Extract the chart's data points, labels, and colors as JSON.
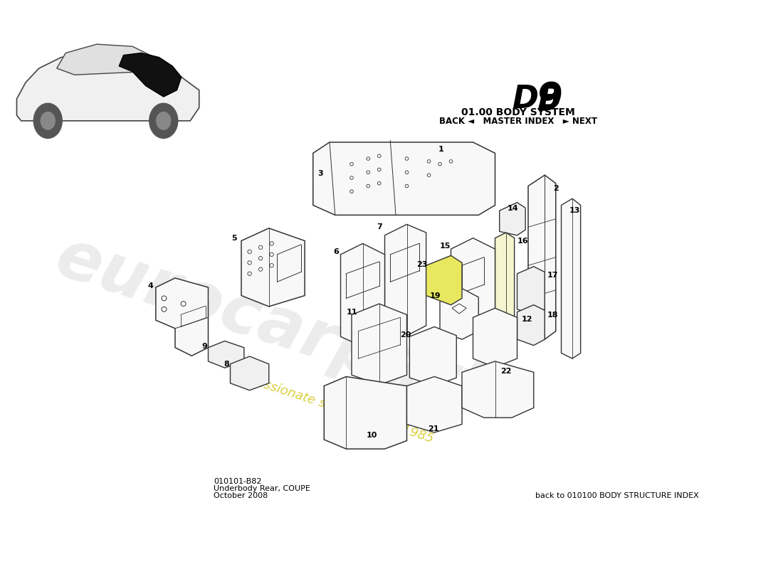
{
  "title_model_db": "DB",
  "title_model_9": "9",
  "title_system": "01.00 BODY SYSTEM",
  "title_nav": "BACK ◄   MASTER INDEX   ► NEXT",
  "part_number": "010101-B82",
  "part_name": "Underbody Rear, COUPE",
  "date": "October 2008",
  "footer": "back to 010100 BODY STRUCTURE INDEX",
  "bg_color": "#FFFFFF",
  "line_color": "#333333",
  "highlight_color": "#e8e860",
  "wm_text_color": "#d8d8d8",
  "wm_yellow_color": "#e8e050"
}
